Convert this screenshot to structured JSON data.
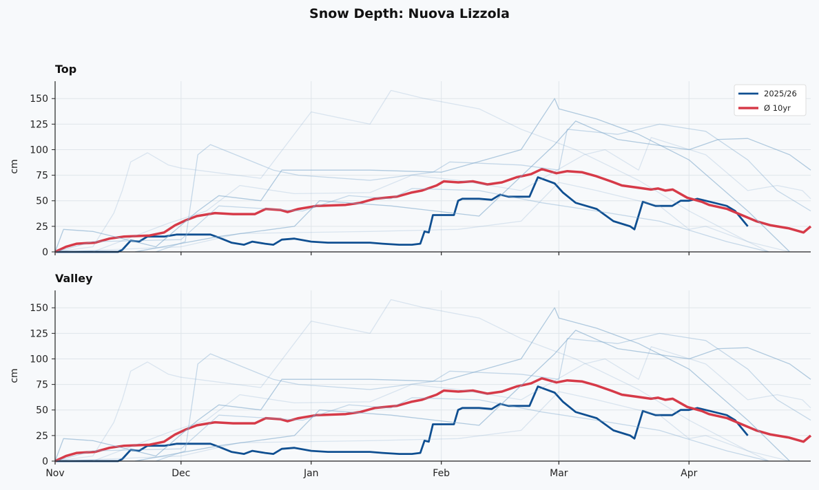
{
  "title": "Snow Depth: Nuova Lizzola",
  "colors": {
    "current": "#0f4f91",
    "average": "#d63a48",
    "history": "#7fa9cc",
    "grid": "#dfe5ea"
  },
  "legend": [
    {
      "label": "2025/26",
      "color": "#0f4f91"
    },
    {
      "label": "Ø 10yr",
      "color": "#d63a48"
    }
  ],
  "chart_data": {
    "type": "line",
    "x_tick_labels": [
      "Nov",
      "Dec",
      "Jan",
      "Feb",
      "Mar",
      "Apr"
    ],
    "x_ticks": [
      "11-01",
      "12-01",
      "01-01",
      "02-01",
      "03-01",
      "04-01"
    ],
    "xlim": [
      "11-01",
      "04-30"
    ],
    "ylim": [
      0,
      167
    ],
    "y_ticks": [
      0,
      25,
      50,
      75,
      100,
      125,
      150
    ],
    "ylabel": "cm",
    "grid": true,
    "legend_position": "top-right",
    "panels": [
      {
        "title": "Top",
        "show_x_labels": false
      },
      {
        "title": "Valley",
        "show_x_labels": true
      }
    ],
    "series": [
      {
        "name": "2025/26",
        "role": "current",
        "points": [
          [
            "11-01",
            0
          ],
          [
            "11-16",
            0
          ],
          [
            "11-17",
            2
          ],
          [
            "11-19",
            11
          ],
          [
            "11-21",
            10
          ],
          [
            "11-23",
            15
          ],
          [
            "11-27",
            15
          ],
          [
            "11-30",
            17
          ],
          [
            "12-08",
            17
          ],
          [
            "12-10",
            14
          ],
          [
            "12-13",
            9
          ],
          [
            "12-16",
            7
          ],
          [
            "12-18",
            10
          ],
          [
            "12-21",
            8
          ],
          [
            "12-23",
            7
          ],
          [
            "12-25",
            12
          ],
          [
            "12-28",
            13
          ],
          [
            "01-01",
            10
          ],
          [
            "01-05",
            9
          ],
          [
            "01-15",
            9
          ],
          [
            "01-18",
            8
          ],
          [
            "01-22",
            7
          ],
          [
            "01-25",
            7
          ],
          [
            "01-27",
            8
          ],
          [
            "01-28",
            20
          ],
          [
            "01-29",
            19
          ],
          [
            "01-30",
            36
          ],
          [
            "02-01",
            36
          ],
          [
            "02-04",
            36
          ],
          [
            "02-05",
            50
          ],
          [
            "02-06",
            52
          ],
          [
            "02-10",
            52
          ],
          [
            "02-13",
            51
          ],
          [
            "02-15",
            56
          ],
          [
            "02-17",
            54
          ],
          [
            "02-22",
            54
          ],
          [
            "02-24",
            73
          ],
          [
            "02-28",
            67
          ],
          [
            "03-02",
            58
          ],
          [
            "03-05",
            48
          ],
          [
            "03-10",
            42
          ],
          [
            "03-14",
            30
          ],
          [
            "03-18",
            25
          ],
          [
            "03-19",
            22
          ],
          [
            "03-21",
            49
          ],
          [
            "03-24",
            45
          ],
          [
            "03-28",
            45
          ],
          [
            "03-30",
            50
          ],
          [
            "04-01",
            50
          ],
          [
            "04-03",
            52
          ],
          [
            "04-06",
            49
          ],
          [
            "04-10",
            45
          ],
          [
            "04-12",
            40
          ],
          [
            "04-15",
            25
          ]
        ]
      },
      {
        "name": "Ø 10yr",
        "role": "average",
        "points": [
          [
            "11-01",
            0
          ],
          [
            "11-04",
            5
          ],
          [
            "11-07",
            8
          ],
          [
            "11-12",
            9
          ],
          [
            "11-16",
            13
          ],
          [
            "11-20",
            15
          ],
          [
            "11-27",
            16
          ],
          [
            "12-01",
            19
          ],
          [
            "12-04",
            26
          ],
          [
            "12-07",
            31
          ],
          [
            "12-10",
            35
          ],
          [
            "12-15",
            38
          ],
          [
            "12-20",
            37
          ],
          [
            "12-26",
            37
          ],
          [
            "12-29",
            42
          ],
          [
            "01-02",
            41
          ],
          [
            "01-04",
            39
          ],
          [
            "01-07",
            42
          ],
          [
            "01-12",
            45
          ],
          [
            "01-20",
            46
          ],
          [
            "01-24",
            48
          ],
          [
            "01-28",
            52
          ],
          [
            "02-03",
            54
          ],
          [
            "02-07",
            58
          ],
          [
            "02-10",
            60
          ],
          [
            "02-14",
            65
          ],
          [
            "02-16",
            69
          ],
          [
            "02-20",
            68
          ],
          [
            "02-24",
            69
          ],
          [
            "02-28",
            66
          ],
          [
            "03-04",
            68
          ],
          [
            "03-08",
            73
          ],
          [
            "03-12",
            76
          ],
          [
            "03-15",
            81
          ],
          [
            "03-19",
            77
          ],
          [
            "03-22",
            79
          ],
          [
            "03-26",
            78
          ],
          [
            "03-30",
            74
          ],
          [
            "04-03",
            69
          ],
          [
            "04-06",
            65
          ],
          [
            "04-10",
            63
          ],
          [
            "04-14",
            61
          ],
          [
            "04-16",
            62
          ],
          [
            "04-18",
            60
          ],
          [
            "04-20",
            61
          ],
          [
            "04-24",
            53
          ],
          [
            "04-28",
            49
          ],
          [
            "04-30",
            46
          ],
          [
            "05-05",
            42
          ],
          [
            "05-09",
            36
          ],
          [
            "05-13",
            30
          ],
          [
            "05-17",
            26
          ],
          [
            "05-22",
            23
          ],
          [
            "05-26",
            19
          ],
          [
            "05-28",
            25
          ]
        ]
      },
      {
        "role": "history",
        "points": [
          [
            "11-01",
            0
          ],
          [
            "11-10",
            5
          ],
          [
            "11-15",
            38
          ],
          [
            "11-17",
            60
          ],
          [
            "11-19",
            88
          ],
          [
            "11-23",
            97
          ],
          [
            "11-28",
            85
          ],
          [
            "12-01",
            82
          ],
          [
            "12-20",
            72
          ],
          [
            "01-01",
            137
          ],
          [
            "01-15",
            125
          ],
          [
            "01-20",
            158
          ],
          [
            "01-28",
            150
          ],
          [
            "02-10",
            140
          ],
          [
            "02-20",
            120
          ],
          [
            "03-05",
            100
          ],
          [
            "03-20",
            70
          ],
          [
            "04-01",
            40
          ],
          [
            "04-15",
            10
          ],
          [
            "04-25",
            0
          ]
        ]
      },
      {
        "role": "history",
        "points": [
          [
            "11-25",
            0
          ],
          [
            "12-02",
            10
          ],
          [
            "12-05",
            95
          ],
          [
            "12-08",
            105
          ],
          [
            "12-14",
            95
          ],
          [
            "12-23",
            80
          ],
          [
            "12-29",
            75
          ],
          [
            "01-15",
            70
          ],
          [
            "01-30",
            78
          ],
          [
            "02-03",
            88
          ],
          [
            "02-20",
            85
          ],
          [
            "03-01",
            80
          ],
          [
            "03-03",
            120
          ],
          [
            "03-15",
            115
          ],
          [
            "03-25",
            125
          ],
          [
            "04-05",
            118
          ],
          [
            "04-15",
            90
          ],
          [
            "04-22",
            60
          ],
          [
            "04-30",
            40
          ]
        ]
      },
      {
        "role": "history",
        "points": [
          [
            "11-01",
            0
          ],
          [
            "11-03",
            22
          ],
          [
            "11-10",
            20
          ],
          [
            "11-25",
            5
          ],
          [
            "12-05",
            40
          ],
          [
            "12-10",
            55
          ],
          [
            "12-20",
            50
          ],
          [
            "12-25",
            80
          ],
          [
            "01-15",
            80
          ],
          [
            "02-01",
            78
          ],
          [
            "02-20",
            100
          ],
          [
            "02-28",
            150
          ],
          [
            "03-01",
            140
          ],
          [
            "03-10",
            130
          ],
          [
            "03-20",
            115
          ],
          [
            "04-01",
            90
          ],
          [
            "04-15",
            40
          ],
          [
            "04-25",
            0
          ]
        ]
      },
      {
        "role": "history",
        "points": [
          [
            "11-10",
            0
          ],
          [
            "11-28",
            28
          ],
          [
            "12-07",
            40
          ],
          [
            "12-15",
            65
          ],
          [
            "12-28",
            57
          ],
          [
            "01-15",
            58
          ],
          [
            "01-25",
            75
          ],
          [
            "02-05",
            70
          ],
          [
            "02-20",
            60
          ],
          [
            "03-07",
            95
          ],
          [
            "03-12",
            100
          ],
          [
            "03-20",
            80
          ],
          [
            "03-23",
            112
          ],
          [
            "04-05",
            95
          ],
          [
            "04-15",
            60
          ],
          [
            "04-22",
            65
          ],
          [
            "04-28",
            60
          ],
          [
            "04-30",
            52
          ]
        ]
      },
      {
        "role": "history",
        "points": [
          [
            "11-01",
            0
          ],
          [
            "11-10",
            10
          ],
          [
            "12-01",
            12
          ],
          [
            "12-10",
            45
          ],
          [
            "12-30",
            40
          ],
          [
            "01-10",
            55
          ],
          [
            "01-20",
            52
          ],
          [
            "01-25",
            62
          ],
          [
            "02-10",
            60
          ],
          [
            "02-25",
            48
          ],
          [
            "03-10",
            40
          ],
          [
            "03-25",
            30
          ],
          [
            "04-10",
            10
          ],
          [
            "04-20",
            0
          ]
        ]
      },
      {
        "role": "history",
        "points": [
          [
            "11-20",
            0
          ],
          [
            "12-10",
            15
          ],
          [
            "12-28",
            25
          ],
          [
            "01-03",
            50
          ],
          [
            "01-20",
            45
          ],
          [
            "02-10",
            35
          ],
          [
            "02-28",
            105
          ],
          [
            "03-05",
            128
          ],
          [
            "03-15",
            110
          ],
          [
            "04-01",
            100
          ],
          [
            "04-08",
            110
          ],
          [
            "04-15",
            111
          ],
          [
            "04-25",
            95
          ],
          [
            "04-30",
            80
          ]
        ]
      },
      {
        "role": "history",
        "points": [
          [
            "11-01",
            0
          ],
          [
            "12-01",
            5
          ],
          [
            "12-15",
            18
          ],
          [
            "01-15",
            20
          ],
          [
            "02-05",
            22
          ],
          [
            "02-20",
            30
          ],
          [
            "03-01",
            68
          ],
          [
            "03-10",
            60
          ],
          [
            "03-25",
            45
          ],
          [
            "04-01",
            22
          ],
          [
            "04-05",
            25
          ],
          [
            "04-15",
            10
          ],
          [
            "04-20",
            0
          ]
        ]
      }
    ]
  }
}
